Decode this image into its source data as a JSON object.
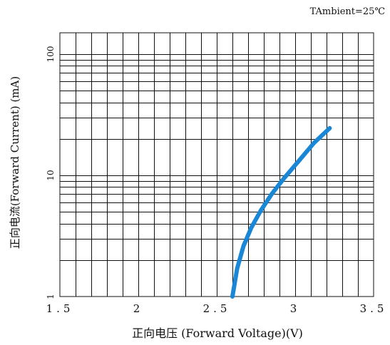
{
  "chart_data": {
    "type": "line",
    "annotation": "TAmbient=25℃",
    "xlabel": "正向电压 (Forward  Voltage)(V)",
    "ylabel": "正向电流(Forward  Current) (mA)",
    "x_ticks": [
      "1.5",
      "2",
      "2.5",
      "3",
      "3.5"
    ],
    "x_tick_values": [
      1.5,
      2,
      2.5,
      3,
      3.5
    ],
    "y_ticks": [
      "1",
      "10",
      "100"
    ],
    "y_tick_values": [
      1,
      10,
      100
    ],
    "xlim": [
      1.5,
      3.5
    ],
    "ylim": [
      1,
      150
    ],
    "y_scale": "log",
    "grid": true,
    "line_color": "#1a86d6",
    "series": [
      {
        "x": [
          2.6,
          2.63,
          2.67,
          2.72,
          2.78,
          2.85,
          2.93,
          3.02,
          3.12,
          3.22
        ],
        "y": [
          1.0,
          1.7,
          2.6,
          3.7,
          5.1,
          7.0,
          9.5,
          13.0,
          18.5,
          24.5
        ]
      }
    ]
  }
}
